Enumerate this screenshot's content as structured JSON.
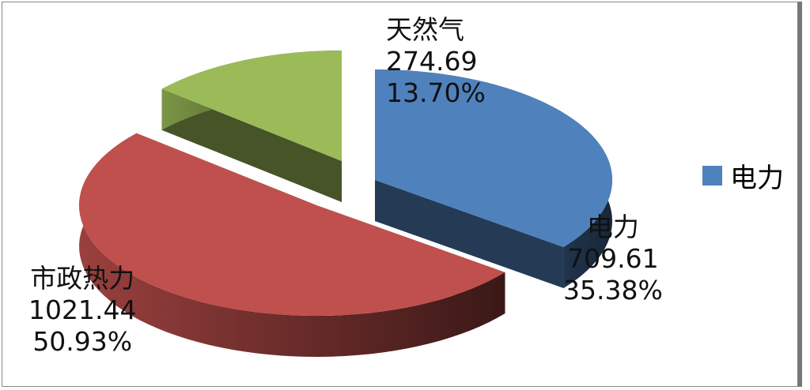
{
  "chart_data": {
    "type": "pie",
    "style": "3d-exploded",
    "slices": [
      {
        "name": "电力",
        "value": 709.61,
        "percent": "35.38%",
        "color": "#4f81bd"
      },
      {
        "name": "市政热力",
        "value": 1021.44,
        "percent": "50.93%",
        "color": "#c0504d"
      },
      {
        "name": "天然气",
        "value": 274.69,
        "percent": "13.70%",
        "color": "#9bbb59"
      }
    ],
    "labels": [
      {
        "name": "电力",
        "value": "709.61",
        "percent": "35.38%"
      },
      {
        "name": "市政热力",
        "value": "1021.44",
        "percent": "50.93%"
      },
      {
        "name": "天然气",
        "value": "274.69",
        "percent": "13.70%"
      }
    ],
    "legend": {
      "placement": "right",
      "entries": [
        {
          "name": "电力",
          "color": "#4f81bd"
        }
      ]
    }
  }
}
